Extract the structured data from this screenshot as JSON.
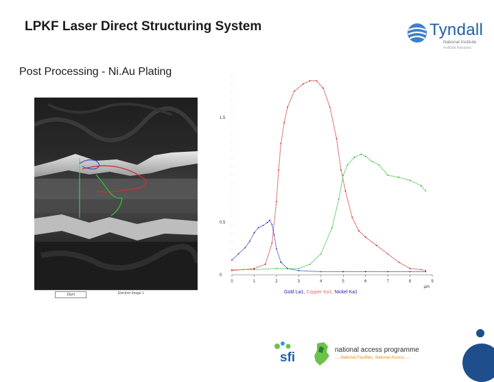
{
  "slide": {
    "title": "LPKF Laser Direct Structuring System",
    "subtitle": "Post Processing -  Ni.Au Plating"
  },
  "logos": {
    "tyndall": {
      "name": "Tyndall",
      "line1": "National Institute",
      "line2": "Institiúid Náisiúnta"
    },
    "sfi": "sfi",
    "nap": {
      "title": "national access programme",
      "tagline": ".....National Facilities, National Access....."
    }
  },
  "sem": {
    "scale_label": "10µm",
    "image_label": "Electron Image 1"
  },
  "chart_data": {
    "type": "line",
    "xlabel": "µm",
    "ylabel": "",
    "xlim": [
      0,
      9
    ],
    "ylim": [
      0,
      1.9
    ],
    "x_ticks": [
      "0",
      "1",
      "2",
      "3",
      "4",
      "5",
      "6",
      "7",
      "8",
      "9"
    ],
    "y_tick_labels": [
      {
        "value": 0,
        "label": "0"
      },
      {
        "value": 0.5,
        "label": "0.5"
      },
      {
        "value": 1.5,
        "label": "1.5"
      }
    ],
    "series": [
      {
        "name": "Gold La1",
        "color": "#1a1aa8",
        "x": [
          0,
          0.3,
          0.6,
          0.8,
          1.0,
          1.2,
          1.4,
          1.6,
          1.7,
          1.8,
          1.9,
          2.0,
          2.2,
          2.5,
          3.0,
          4.0,
          5.0,
          6.0,
          7.0,
          8.0,
          8.7
        ],
        "y": [
          0.14,
          0.2,
          0.26,
          0.32,
          0.4,
          0.45,
          0.47,
          0.5,
          0.52,
          0.48,
          0.38,
          0.25,
          0.12,
          0.06,
          0.04,
          0.03,
          0.03,
          0.03,
          0.03,
          0.03,
          0.03
        ]
      },
      {
        "name": "Copper Ka1",
        "color": "#c41818",
        "x": [
          0,
          0.5,
          1.0,
          1.5,
          1.8,
          2.0,
          2.1,
          2.2,
          2.35,
          2.5,
          2.8,
          3.2,
          3.5,
          3.8,
          4.1,
          4.4,
          4.7,
          4.9,
          5.1,
          5.4,
          5.7,
          6.0,
          6.5,
          7.0,
          7.5,
          8.0,
          8.5,
          8.7
        ],
        "y": [
          0.04,
          0.05,
          0.06,
          0.1,
          0.3,
          0.7,
          1.0,
          1.25,
          1.45,
          1.6,
          1.75,
          1.82,
          1.85,
          1.85,
          1.78,
          1.6,
          1.3,
          1.0,
          0.8,
          0.55,
          0.42,
          0.36,
          0.28,
          0.2,
          0.12,
          0.06,
          0.05,
          0.04
        ]
      },
      {
        "name": "Nickel Ka1",
        "color": "#22b022",
        "x": [
          0,
          1.0,
          2.0,
          3.0,
          3.5,
          4.0,
          4.5,
          4.8,
          5.0,
          5.2,
          5.5,
          5.8,
          6.0,
          6.3,
          6.6,
          7.0,
          7.5,
          8.0,
          8.5,
          8.7
        ],
        "y": [
          0.05,
          0.05,
          0.06,
          0.06,
          0.1,
          0.2,
          0.45,
          0.72,
          0.95,
          1.05,
          1.12,
          1.15,
          1.13,
          1.08,
          1.05,
          0.95,
          0.93,
          0.9,
          0.85,
          0.8
        ]
      }
    ],
    "legend_placement": "bottom"
  }
}
